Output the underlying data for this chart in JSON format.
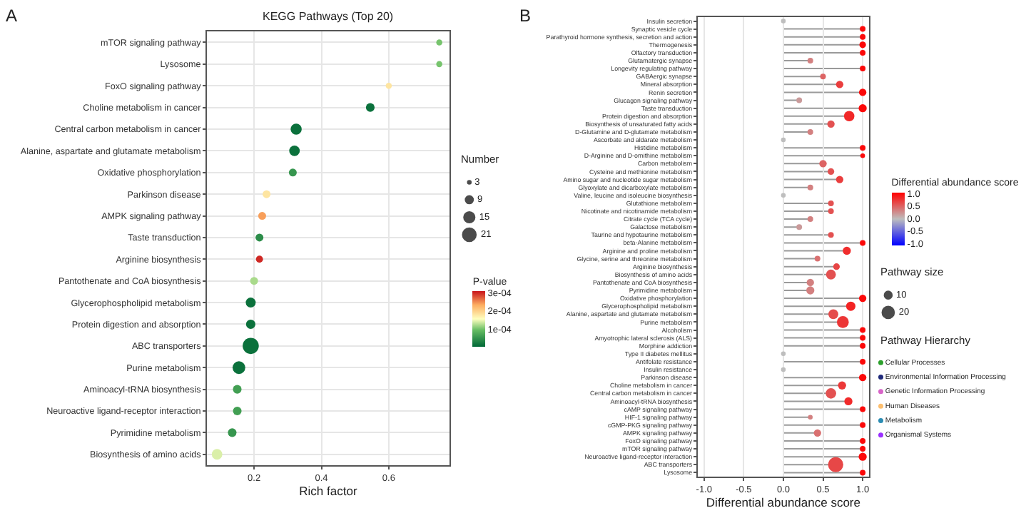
{
  "chart_data": [
    {
      "type": "bubble",
      "orientation": "horizontal",
      "title": "KEGG Pathways (Top 20)",
      "xlabel": "Rich factor",
      "annotations": [
        "A",
        "Number"
      ],
      "categories": [
        "mTOR signaling pathway",
        "Lysosome",
        "FoxO signaling pathway",
        "Choline metabolism in cancer",
        "Central carbon metabolism in cancer",
        "Alanine, aspartate and glutamate metabolism",
        "Oxidative phosphorylation",
        "Parkinson disease",
        "AMPK signaling pathway",
        "Taste transduction",
        "Arginine biosynthesis",
        "Pantothenate and CoA biosynthesis",
        "Glycerophospholipid metabolism",
        "Protein digestion and absorption",
        "ABC transporters",
        "Purine metabolism",
        "Aminoacyl-tRNA biosynthesis",
        "Neuroactive ligand-receptor interaction",
        "Pyrimidine metabolism",
        "Biosynthesis of amino acids"
      ],
      "values": [
        0.75,
        0.75,
        0.6,
        0.545,
        0.325,
        0.32,
        0.315,
        0.237,
        0.224,
        0.216,
        0.216,
        0.2,
        0.19,
        0.19,
        0.19,
        0.155,
        0.15,
        0.15,
        0.135,
        0.09
      ],
      "sizes": [
        3,
        3,
        3,
        6,
        10,
        9,
        5,
        5,
        5,
        5,
        4,
        5,
        8,
        7,
        21,
        13,
        6,
        6,
        6,
        9
      ],
      "size_legend": [
        3,
        9,
        15,
        21
      ],
      "cvalues": [
        0.0001,
        0.0001,
        0.00018,
        1e-05,
        1e-05,
        1e-05,
        5e-05,
        0.00018,
        0.00024,
        4e-05,
        0.0003,
        0.00012,
        1e-05,
        1e-05,
        1e-05,
        1e-05,
        6e-05,
        6e-05,
        5e-05,
        0.00014
      ],
      "clabel": "P-value",
      "clim": [
        0,
        0.00031
      ],
      "cticks": [
        {
          "value": 0.0001,
          "label": "1e-04"
        },
        {
          "value": 0.0002,
          "label": "2e-04"
        },
        {
          "value": 0.0003,
          "label": "3e-04"
        }
      ],
      "xlim": [
        0.06,
        0.78
      ],
      "xticks": [
        0.2,
        0.4,
        0.6
      ],
      "grid": true,
      "marker": "circle"
    },
    {
      "type": "lollipop",
      "orientation": "horizontal",
      "xlabel": "Differential abundance score",
      "annotations": [
        "B",
        "Pathway size"
      ],
      "categories": [
        "Insulin secretion",
        "Synaptic vesicle cycle",
        "Parathyroid hormone synthesis, secretion and action",
        "Thermogenesis",
        "Olfactory transduction",
        "Glutamatergic synapse",
        "Longevity regulating pathway",
        "GABAergic synapse",
        "Mineral absorption",
        "Renin secretion",
        "Glucagon signaling pathway",
        "Taste transduction",
        "Protein digestion and absorption",
        "Biosynthesis of unsaturated fatty acids",
        "D-Glutamine and D-glutamate metabolism",
        "Ascorbate and aldarate metabolism",
        "Histidine metabolism",
        "D-Arginine and D-ornithine metabolism",
        "Carbon metabolism",
        "Cysteine and methionine metabolism",
        "Amino sugar and nucleotide sugar metabolism",
        "Glyoxylate and dicarboxylate metabolism",
        "Valine, leucine and isoleucine biosynthesis",
        "Glutathione metabolism",
        "Nicotinate and nicotinamide metabolism",
        "Citrate cycle (TCA cycle)",
        "Galactose metabolism",
        "Taurine and hypotaurine metabolism",
        "beta-Alanine metabolism",
        "Arginine and proline metabolism",
        "Glycine, serine and threonine metabolism",
        "Arginine biosynthesis",
        "Biosynthesis of amino acids",
        "Pantothenate and CoA biosynthesis",
        "Pyrimidine metabolism",
        "Oxidative phosphorylation",
        "Glycerophospholipid metabolism",
        "Alanine, aspartate and glutamate metabolism",
        "Purine metabolism",
        "Alcoholism",
        "Amyotrophic lateral sclerosis (ALS)",
        "Morphine addiction",
        "Type II diabetes mellitus",
        "Antifolate resistance",
        "Insulin resistance",
        "Parkinson disease",
        "Choline metabolism in cancer",
        "Central carbon metabolism in cancer",
        "Aminoacyl-tRNA biosynthesis",
        "cAMP signaling pathway",
        "HIF-1 signaling pathway",
        "cGMP-PKG signaling pathway",
        "AMPK signaling pathway",
        "FoxO signaling pathway",
        "mTOR signaling pathway",
        "Neuroactive ligand-receptor interaction",
        "ABC transporters",
        "Lysosome"
      ],
      "values": [
        0,
        1.0,
        1.0,
        1.0,
        1.0,
        0.34,
        1.0,
        0.5,
        0.71,
        1.0,
        0.2,
        1.0,
        0.83,
        0.6,
        0.34,
        0,
        1.0,
        1.0,
        0.5,
        0.6,
        0.71,
        0.34,
        0,
        0.6,
        0.6,
        0.34,
        0.2,
        0.6,
        1.0,
        0.8,
        0.43,
        0.67,
        0.6,
        0.34,
        0.34,
        1.0,
        0.85,
        0.63,
        0.75,
        1.0,
        1.0,
        1.0,
        0,
        1.0,
        0,
        1.0,
        0.74,
        0.6,
        0.82,
        1.0,
        0.34,
        1.0,
        0.43,
        1.0,
        1.0,
        1.0,
        0.66,
        1.0
      ],
      "cvalues": [
        0,
        1.0,
        1.0,
        1.0,
        1.0,
        0.34,
        1.0,
        0.5,
        0.71,
        1.0,
        0.2,
        1.0,
        0.83,
        0.6,
        0.34,
        0,
        1.0,
        1.0,
        0.5,
        0.6,
        0.71,
        0.34,
        0,
        0.6,
        0.6,
        0.34,
        0.2,
        0.6,
        1.0,
        0.8,
        0.43,
        0.67,
        0.6,
        0.34,
        0.34,
        1.0,
        0.85,
        0.63,
        0.75,
        1.0,
        1.0,
        1.0,
        0,
        1.0,
        0,
        1.0,
        0.74,
        0.6,
        0.82,
        1.0,
        0.34,
        1.0,
        0.43,
        1.0,
        1.0,
        1.0,
        0.66,
        1.0
      ],
      "sizes": [
        2,
        3,
        3,
        4,
        3,
        3,
        3,
        3,
        5,
        5,
        3,
        6,
        10,
        5,
        3,
        2,
        3,
        2,
        5,
        4,
        5,
        3,
        2,
        3,
        3,
        3,
        3,
        3,
        3,
        6,
        3,
        4,
        9,
        5,
        6,
        5,
        8,
        9,
        13,
        3,
        3,
        3,
        2,
        3,
        2,
        5,
        6,
        10,
        6,
        3,
        2,
        3,
        5,
        3,
        3,
        6,
        21,
        3
      ],
      "size_legend": [
        10,
        20
      ],
      "clabel": "Differential abundance score",
      "clim": [
        -1.05,
        1.05
      ],
      "cticks": [
        {
          "value": 1,
          "label": "1.0"
        },
        {
          "value": 0.5,
          "label": "0.5"
        },
        {
          "value": 0,
          "label": "0.0"
        },
        {
          "value": -0.5,
          "label": "-0.5"
        },
        {
          "value": -1,
          "label": "-1.0"
        }
      ],
      "xlim": [
        -1.08,
        1.08
      ],
      "xticks": [
        {
          "value": -1,
          "label": "-1.0"
        },
        {
          "value": -0.5,
          "label": "-0.5"
        },
        {
          "value": 0,
          "label": "0.0"
        },
        {
          "value": 0.5,
          "label": "0.5"
        },
        {
          "value": 1,
          "label": "1.0"
        }
      ],
      "grid": "x",
      "marker": "circle"
    },
    {
      "type": "other",
      "legend_title": "Pathway Hierarchy",
      "categories": [
        "Cellular Processes",
        "Environmental Information Processing",
        "Genetic Information Processing",
        "Human Diseases",
        "Metabolism",
        "Organismal Systems"
      ],
      "colors": [
        "#2ca02c",
        "#1f2a7a",
        "#d864c8",
        "#fdbf6f",
        "#2b8cb3",
        "#9b30ff"
      ]
    }
  ]
}
